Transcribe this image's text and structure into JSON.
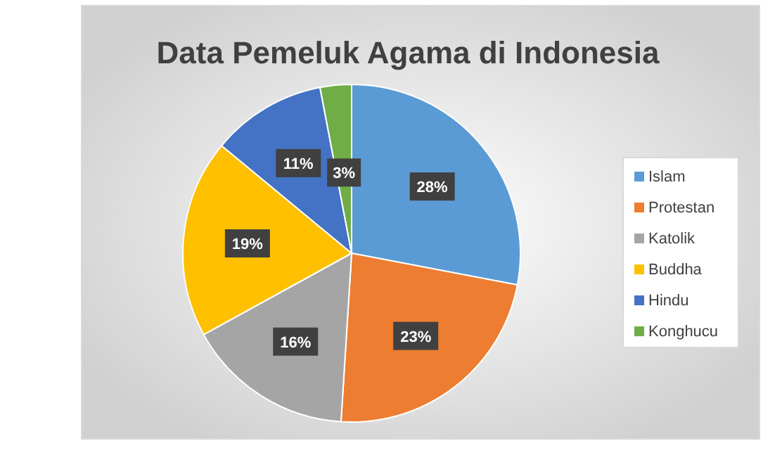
{
  "chart_data": {
    "type": "pie",
    "title": "Data Pemeluk Agama di Indonesia",
    "categories": [
      "Islam",
      "Protestan",
      "Katolik",
      "Buddha",
      "Hindu",
      "Konghucu"
    ],
    "values": [
      28,
      23,
      16,
      19,
      11,
      3
    ],
    "colors": [
      "#5b9bd5",
      "#ed7d31",
      "#a5a5a5",
      "#ffc000",
      "#4472c4",
      "#70ad47"
    ],
    "value_labels": [
      "28%",
      "23%",
      "16%",
      "19%",
      "11%",
      "3%"
    ],
    "legend": "right"
  }
}
